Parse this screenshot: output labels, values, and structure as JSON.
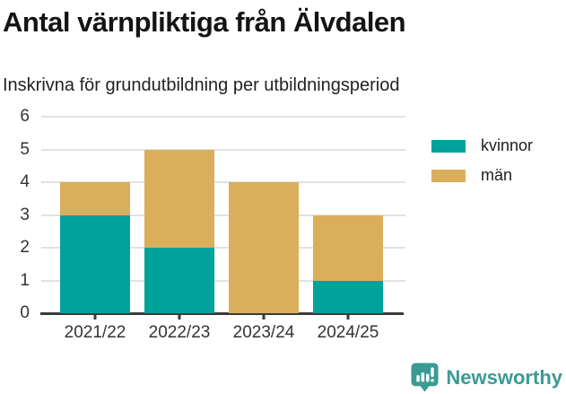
{
  "page": {
    "background": "#ffffff"
  },
  "chart_data": {
    "type": "bar",
    "stacked": true,
    "title": "Antal värnpliktiga från Älvdalen",
    "subtitle": "Inskrivna för grundutbildning per utbildningsperiod",
    "categories": [
      "2021/22",
      "2022/23",
      "2023/24",
      "2024/25"
    ],
    "series": [
      {
        "name": "kvinnor",
        "color": "#00a29b",
        "values": [
          3,
          2,
          0,
          1
        ]
      },
      {
        "name": "män",
        "color": "#dbae5c",
        "values": [
          1,
          3,
          4,
          2
        ]
      }
    ],
    "xlabel": "",
    "ylabel": "",
    "ylim": [
      0,
      6
    ],
    "yticks": [
      0,
      1,
      2,
      3,
      4,
      5,
      6
    ],
    "grid": true,
    "legend_position": "top-right"
  },
  "colors": {
    "axis": "#3a3a3a",
    "gridline": "#e2e2e2",
    "tick_label": "#333333",
    "brand_teal": "#3a9a94"
  },
  "footer": {
    "brand": "Newsworthy"
  }
}
